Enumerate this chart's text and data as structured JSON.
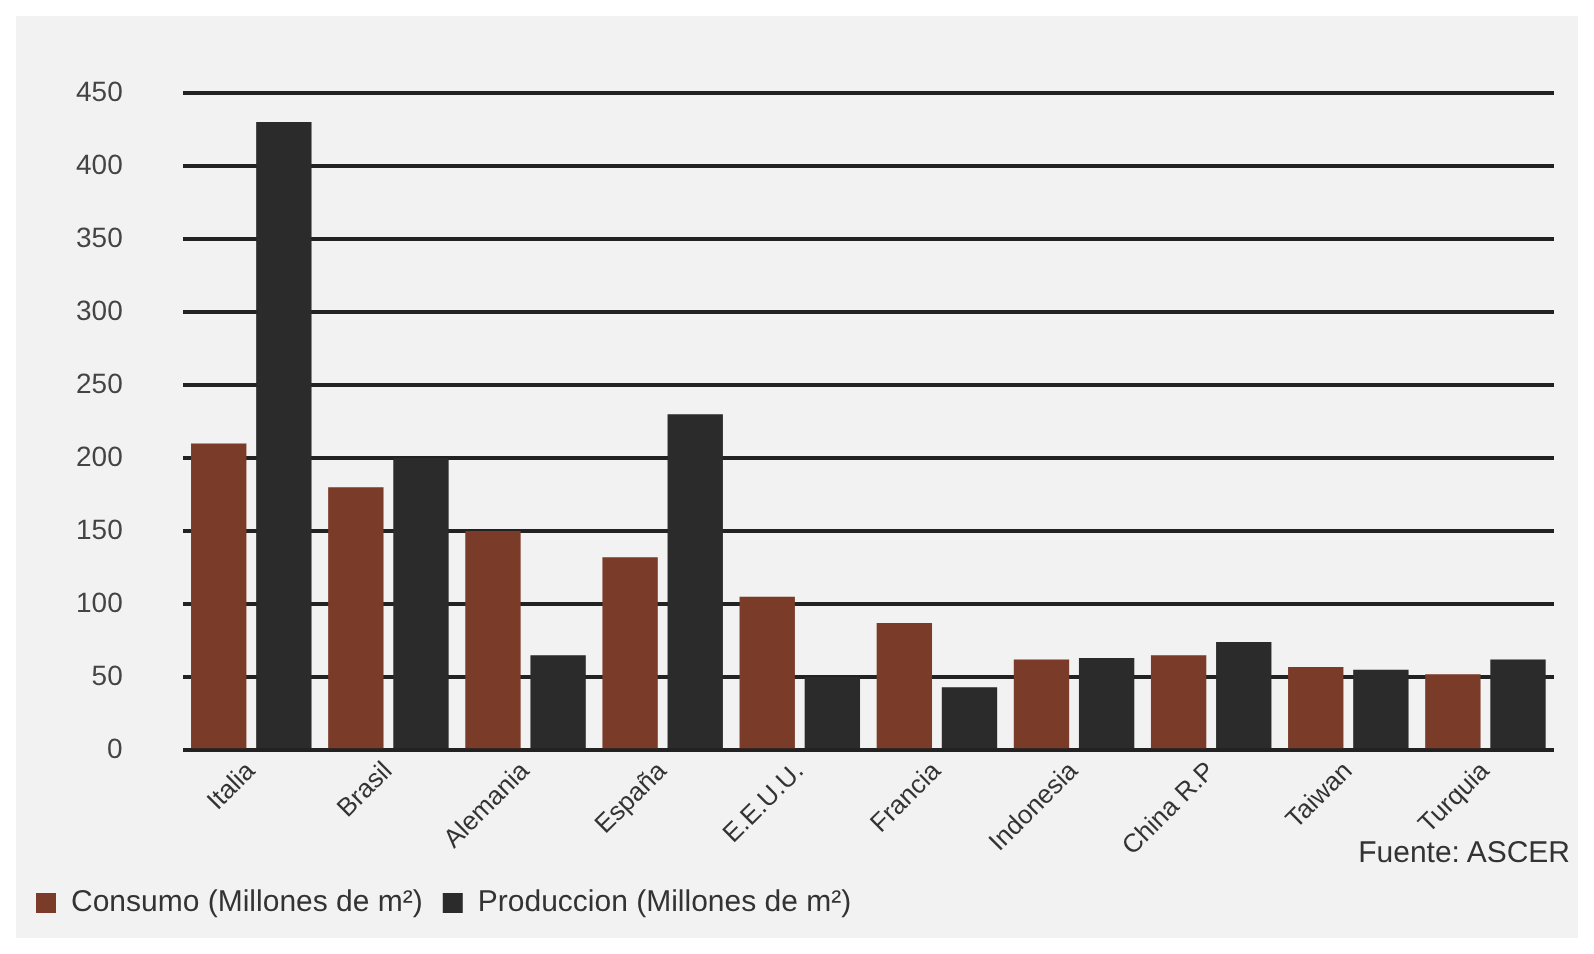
{
  "chart_data": {
    "type": "bar",
    "categories": [
      "Italia",
      "Brasil",
      "Alemania",
      "España",
      "E.E.U.U.",
      "Francia",
      "Indonesia",
      "China R.P",
      "Taiwan",
      "Turquia"
    ],
    "series": [
      {
        "name": "Consumo (Millones de m²)",
        "color": "#7a3b28",
        "values": [
          210,
          180,
          150,
          132,
          105,
          87,
          62,
          65,
          57,
          52
        ]
      },
      {
        "name": "Produccion (Millones de m²)",
        "color": "#2b2b2b",
        "values": [
          430,
          200,
          65,
          230,
          50,
          43,
          63,
          74,
          55,
          62
        ]
      }
    ],
    "ylim": [
      0,
      450
    ],
    "yticks": [
      0,
      50,
      100,
      150,
      200,
      250,
      300,
      350,
      400,
      450
    ],
    "grid": "y",
    "legend": "bottom left",
    "annotations": [
      "Fuente: ASCER"
    ]
  }
}
